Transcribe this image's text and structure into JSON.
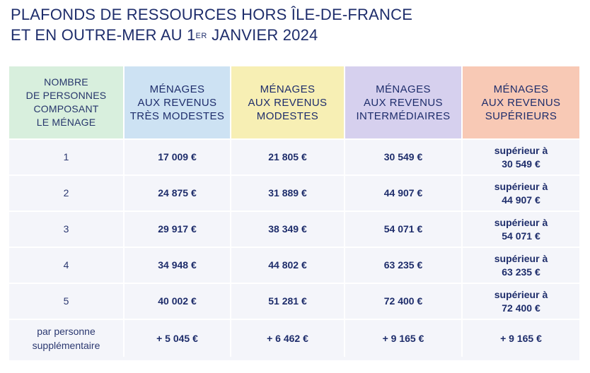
{
  "title": {
    "line1": "PLAFONDS DE RESSOURCES HORS ÎLE-DE-FRANCE",
    "line2_before": "ET EN OUTRE-MER AU 1",
    "line2_sup": "ER",
    "line2_after": " JANVIER 2024"
  },
  "table": {
    "headers": {
      "col0": [
        "NOMBRE",
        "DE PERSONNES",
        "COMPOSANT",
        "LE MÉNAGE"
      ],
      "col1": [
        "MÉNAGES",
        "AUX REVENUS",
        "TRÈS MODESTES"
      ],
      "col2": [
        "MÉNAGES",
        "AUX REVENUS",
        "MODESTES"
      ],
      "col3": [
        "MÉNAGES",
        "AUX REVENUS",
        "INTERMÉDIAIRES"
      ],
      "col4": [
        "MÉNAGES",
        "AUX REVENUS",
        "SUPÉRIEURS"
      ]
    },
    "rows": [
      {
        "label": "1",
        "tres_modestes": "17 009 €",
        "modestes": "21 805 €",
        "intermediaires": "30 549 €",
        "superieurs": [
          "supérieur à",
          "30 549 €"
        ]
      },
      {
        "label": "2",
        "tres_modestes": "24 875 €",
        "modestes": "31 889 €",
        "intermediaires": "44 907 €",
        "superieurs": [
          "supérieur à",
          "44 907 €"
        ]
      },
      {
        "label": "3",
        "tres_modestes": "29 917 €",
        "modestes": "38 349 €",
        "intermediaires": "54 071 €",
        "superieurs": [
          "supérieur à",
          "54 071 €"
        ]
      },
      {
        "label": "4",
        "tres_modestes": "34 948 €",
        "modestes": "44 802 €",
        "intermediaires": "63 235 €",
        "superieurs": [
          "supérieur à",
          "63 235 €"
        ]
      },
      {
        "label": "5",
        "tres_modestes": "40 002 €",
        "modestes": "51 281 €",
        "intermediaires": "72 400 €",
        "superieurs": [
          "supérieur à",
          "72 400 €"
        ]
      }
    ],
    "extra_row": {
      "label": [
        "par personne",
        "supplémentaire"
      ],
      "tres_modestes": "+ 5 045 €",
      "modestes": "+ 6 462 €",
      "intermediaires": "+ 9 165 €",
      "superieurs": "+ 9 165 €"
    },
    "colors": {
      "header_persons": "#d8efdd",
      "header_tres_modestes": "#cde2f3",
      "header_modestes": "#f7efb4",
      "header_intermediaires": "#d6d0ee",
      "header_superieurs": "#f8c9b5",
      "body_bg": "#f4f5fa",
      "text": "#1e2d6b"
    }
  }
}
